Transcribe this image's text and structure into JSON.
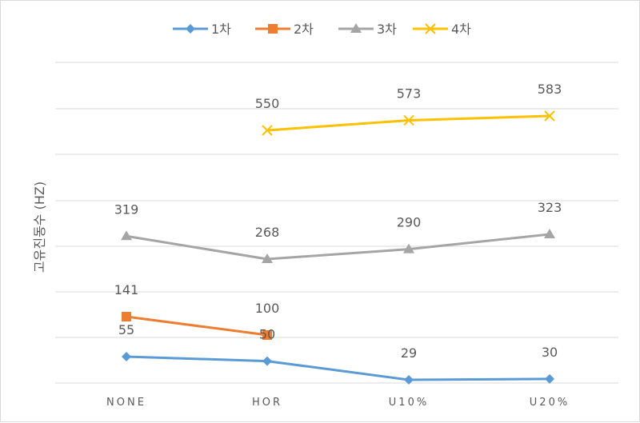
{
  "chart_data": {
    "type": "line",
    "title": "",
    "xlabel": "",
    "ylabel": "고유진동수 (HZ)",
    "categories": [
      "NONE",
      "HOR",
      "U10%",
      "U20%"
    ],
    "series": [
      {
        "name": "1차",
        "color": "#5b9bd5",
        "marker": "diamond",
        "values": [
          55,
          50,
          29,
          30
        ]
      },
      {
        "name": "2차",
        "color": "#ed7d31",
        "marker": "square",
        "values": [
          141,
          100,
          null,
          null
        ]
      },
      {
        "name": "3차",
        "color": "#a5a5a5",
        "marker": "triangle",
        "values": [
          319,
          268,
          290,
          323
        ]
      },
      {
        "name": "4차",
        "color": "#ffc000",
        "marker": "x",
        "values": [
          null,
          550,
          573,
          583
        ]
      }
    ],
    "grid": true,
    "legend": "top-center"
  }
}
